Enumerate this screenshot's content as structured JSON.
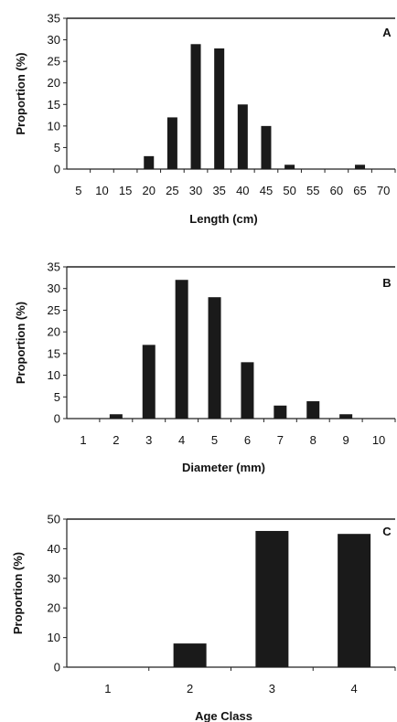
{
  "chart_data": [
    {
      "type": "bar",
      "panel_label": "A",
      "xlabel": "Length (cm)",
      "ylabel": "Proportion (%)",
      "ylim": [
        0,
        35
      ],
      "yticks": [
        "0",
        "5",
        "10",
        "15",
        "20",
        "25",
        "30",
        "35"
      ],
      "categories": [
        "5",
        "10",
        "15",
        "20",
        "25",
        "30",
        "35",
        "40",
        "45",
        "50",
        "55",
        "60",
        "65",
        "70"
      ],
      "values": [
        0,
        0,
        0,
        3,
        12,
        29,
        28,
        15,
        10,
        1,
        0,
        0,
        1,
        0
      ],
      "bar_color": "#1a1a1a"
    },
    {
      "type": "bar",
      "panel_label": "B",
      "xlabel": "Diameter (mm)",
      "ylabel": "Proportion (%)",
      "ylim": [
        0,
        35
      ],
      "yticks": [
        "0",
        "5",
        "10",
        "15",
        "20",
        "25",
        "30",
        "35"
      ],
      "categories": [
        "1",
        "2",
        "3",
        "4",
        "5",
        "6",
        "7",
        "8",
        "9",
        "10"
      ],
      "values": [
        0,
        1,
        17,
        32,
        28,
        13,
        3,
        4,
        1,
        0
      ],
      "bar_color": "#1a1a1a"
    },
    {
      "type": "bar",
      "panel_label": "C",
      "xlabel": "Age Class",
      "ylabel": "Proportion (%)",
      "ylim": [
        0,
        50
      ],
      "yticks": [
        "0",
        "10",
        "20",
        "30",
        "40",
        "50"
      ],
      "categories": [
        "1",
        "2",
        "3",
        "4"
      ],
      "values": [
        0,
        8,
        46,
        45
      ],
      "bar_color": "#1a1a1a"
    }
  ]
}
